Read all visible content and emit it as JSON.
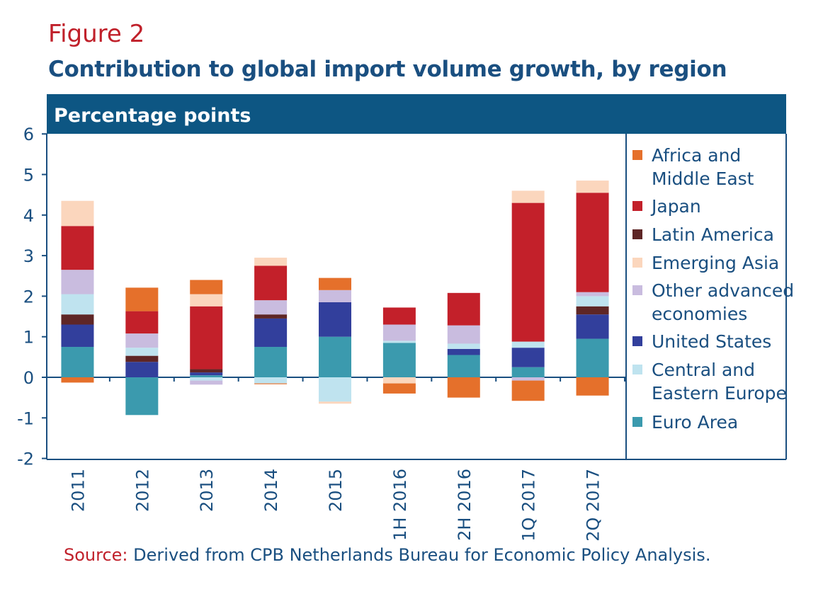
{
  "figure_label": "Figure 2",
  "title": "Contribution to global import volume growth, by region",
  "source": {
    "label": "Source:",
    "text": "Derived from CPB Netherlands Bureau for Economic Policy Analysis."
  },
  "chart_data": {
    "type": "bar",
    "stacked": true,
    "unit_header": "Percentage points",
    "ylim": [
      -2,
      6
    ],
    "yticks": [
      -2,
      -1,
      0,
      1,
      2,
      3,
      4,
      5,
      6
    ],
    "legend_position": "right",
    "categories": [
      "2011",
      "2012",
      "2013",
      "2014",
      "2015",
      "1H 2016",
      "2H 2016",
      "1Q 2017",
      "2Q 2017"
    ],
    "series": [
      {
        "name": "Euro Area",
        "color": "#3b9aae",
        "values": [
          0.75,
          -0.93,
          0.05,
          0.75,
          1.0,
          0.85,
          0.55,
          0.25,
          0.95
        ]
      },
      {
        "name": "United States",
        "color": "#323f9c",
        "values": [
          0.55,
          0.38,
          0.07,
          0.7,
          0.85,
          0.0,
          0.15,
          0.48,
          0.6
        ]
      },
      {
        "name": "Latin America",
        "color": "#5e2626",
        "values": [
          0.25,
          0.15,
          0.08,
          0.1,
          0.0,
          0.0,
          0.0,
          0.0,
          0.2
        ]
      },
      {
        "name": "Central and Eastern Europe",
        "color": "#bfe3ef",
        "values": [
          0.5,
          0.2,
          -0.08,
          -0.15,
          -0.6,
          0.05,
          0.13,
          0.15,
          0.25
        ]
      },
      {
        "name": "Other advanced economies",
        "color": "#c9bcdf",
        "values": [
          0.6,
          0.35,
          -0.1,
          0.35,
          0.3,
          0.4,
          0.45,
          -0.08,
          0.1
        ]
      },
      {
        "name": "Japan",
        "color": "#c3202a",
        "values": [
          1.08,
          0.55,
          1.55,
          0.85,
          0.0,
          0.42,
          0.8,
          3.42,
          2.45
        ]
      },
      {
        "name": "Emerging Asia",
        "color": "#fbd6bd",
        "values": [
          0.62,
          0.0,
          0.3,
          0.2,
          -0.05,
          -0.15,
          0.0,
          0.3,
          0.3
        ]
      },
      {
        "name": "Africa and Middle East",
        "color": "#e5702b",
        "values": [
          -0.13,
          0.58,
          0.35,
          -0.02,
          0.3,
          -0.25,
          -0.5,
          -0.5,
          -0.45
        ]
      }
    ]
  },
  "legend": [
    {
      "label": "Africa and Middle East",
      "lines": [
        "Africa and",
        "Middle East"
      ],
      "color": "#e5702b"
    },
    {
      "label": "Japan",
      "lines": [
        "Japan"
      ],
      "color": "#c3202a"
    },
    {
      "label": "Latin America",
      "lines": [
        "Latin America"
      ],
      "color": "#5e2626"
    },
    {
      "label": "Emerging Asia",
      "lines": [
        "Emerging Asia"
      ],
      "color": "#fbd6bd"
    },
    {
      "label": "Other advanced economies",
      "lines": [
        "Other advanced",
        "economies"
      ],
      "color": "#c9bcdf"
    },
    {
      "label": "United States",
      "lines": [
        "United States"
      ],
      "color": "#323f9c"
    },
    {
      "label": "Central and Eastern Europe",
      "lines": [
        "Central and",
        "Eastern Europe"
      ],
      "color": "#bfe3ef"
    },
    {
      "label": "Euro Area",
      "lines": [
        "Euro Area"
      ],
      "color": "#3b9aae"
    }
  ],
  "colors": {
    "header_bg": "#0d5683",
    "frame": "#1a4f80",
    "accent_red": "#c0202a"
  }
}
